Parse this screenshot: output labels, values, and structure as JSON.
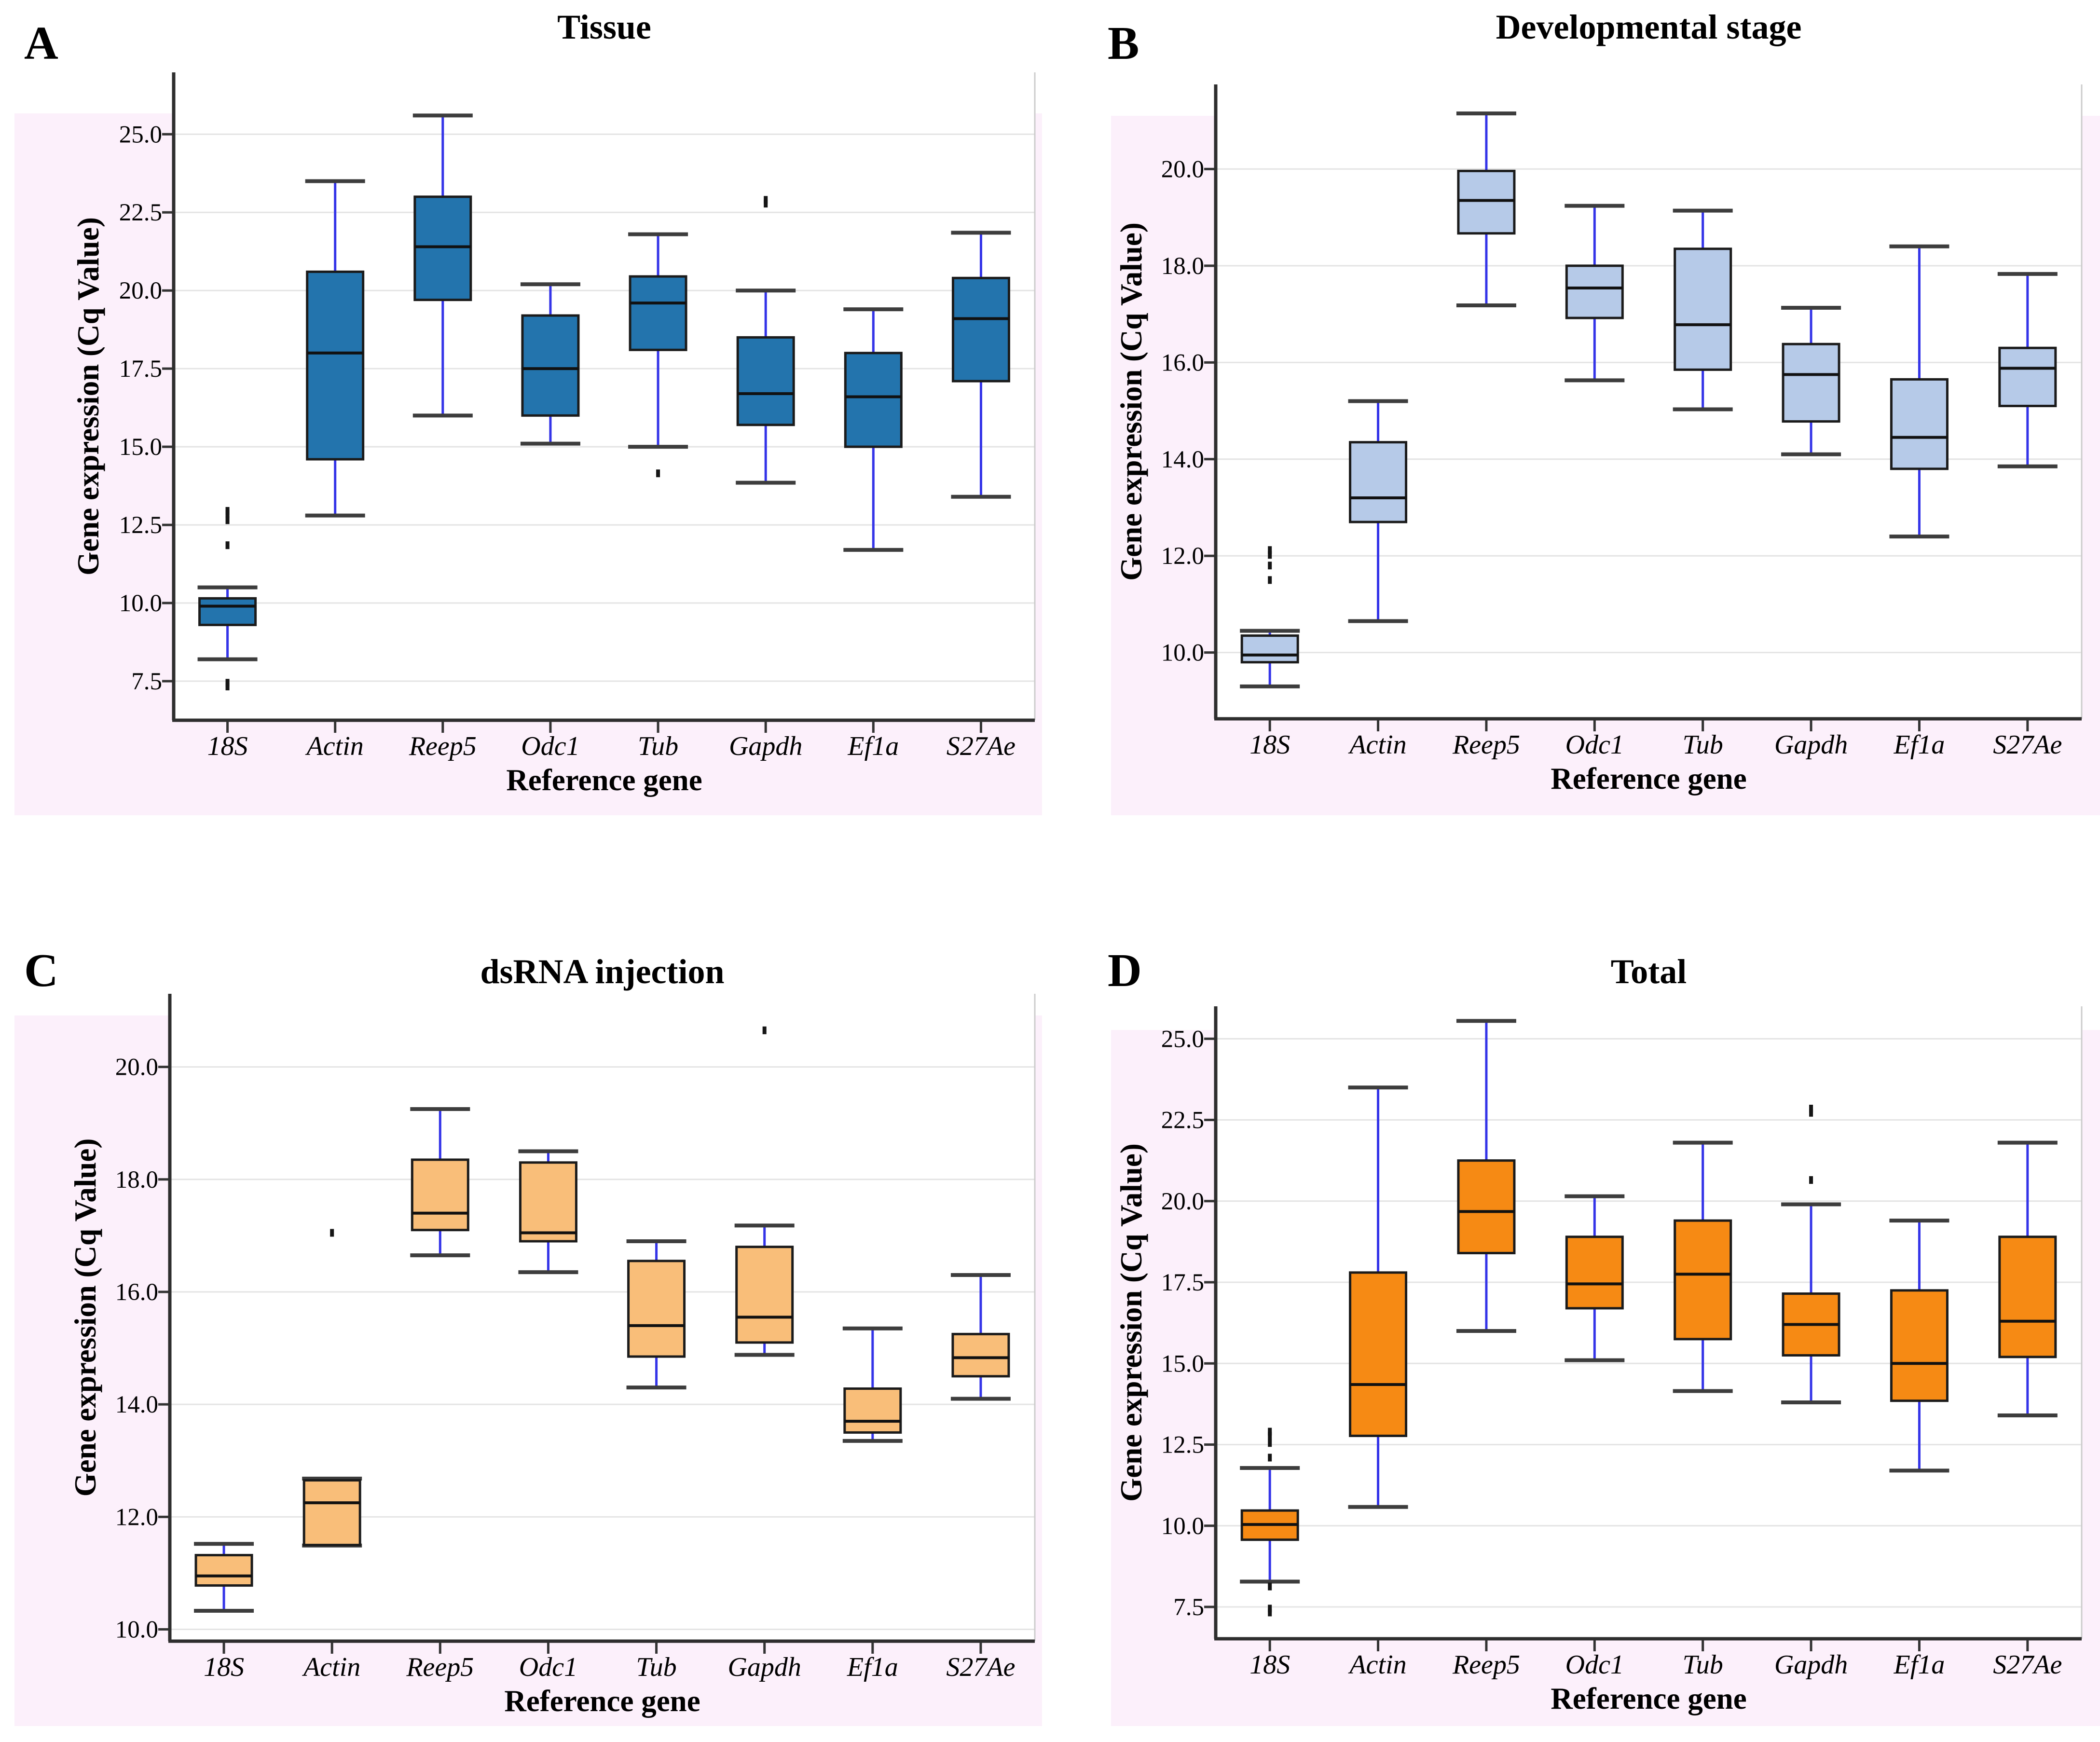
{
  "figure": {
    "background_color": "#ffffff",
    "panel_background_color": "#fcf0fb",
    "plot_background_color": "#ffffff",
    "gridline_color": "#e4e4e4",
    "whisker_color": "#3434e8",
    "cap_color": "#3d3d3d",
    "box_border_color": "#1b1b1b",
    "outlier_color": "#151515"
  },
  "chart_data": [
    {
      "type": "box",
      "panel_letter": "A",
      "title": "Tissue",
      "xlabel": "Reference gene",
      "ylabel": "Gene expression (Cq Value)",
      "box_fill": "#2374ad",
      "ylim": [
        6.25,
        26.98
      ],
      "yticks": [
        7.5,
        10.0,
        12.5,
        15.0,
        17.5,
        20.0,
        22.5,
        25.0
      ],
      "ytick_labels": [
        "7.5",
        "10.0",
        "12.5",
        "15.0",
        "17.5",
        "20.0",
        "22.5",
        "25.0"
      ],
      "categories": [
        "18S",
        "Actin",
        "Reep5",
        "Odc1",
        "Tub",
        "Gapdh",
        "Ef1a",
        "S27Ae"
      ],
      "boxes": [
        {
          "gene": "18S",
          "whisker_low": 8.2,
          "q1": 9.3,
          "median": 9.9,
          "q3": 10.15,
          "whisker_high": 10.5,
          "outliers": [
            12.95,
            12.85,
            12.65,
            11.85,
            7.45,
            7.33
          ]
        },
        {
          "gene": "Actin",
          "whisker_low": 12.8,
          "q1": 14.6,
          "median": 18.0,
          "q3": 20.6,
          "whisker_high": 23.5,
          "outliers": []
        },
        {
          "gene": "Reep5",
          "whisker_low": 16.0,
          "q1": 19.7,
          "median": 21.4,
          "q3": 23.0,
          "whisker_high": 25.6,
          "outliers": []
        },
        {
          "gene": "Odc1",
          "whisker_low": 15.1,
          "q1": 16.0,
          "median": 17.5,
          "q3": 19.2,
          "whisker_high": 20.2,
          "outliers": []
        },
        {
          "gene": "Tub",
          "whisker_low": 15.0,
          "q1": 18.1,
          "median": 19.6,
          "q3": 20.45,
          "whisker_high": 21.8,
          "outliers": [
            14.15
          ]
        },
        {
          "gene": "Gapdh",
          "whisker_low": 13.85,
          "q1": 15.7,
          "median": 16.7,
          "q3": 18.5,
          "whisker_high": 20.0,
          "outliers": [
            22.9,
            22.78
          ]
        },
        {
          "gene": "Ef1a",
          "whisker_low": 11.7,
          "q1": 15.0,
          "median": 16.6,
          "q3": 18.0,
          "whisker_high": 19.4,
          "outliers": []
        },
        {
          "gene": "S27Ae",
          "whisker_low": 13.4,
          "q1": 17.1,
          "median": 19.1,
          "q3": 20.4,
          "whisker_high": 21.85,
          "outliers": []
        }
      ]
    },
    {
      "type": "box",
      "panel_letter": "B",
      "title": "Developmental stage",
      "xlabel": "Reference gene",
      "ylabel": "Gene expression (Cq Value)",
      "box_fill": "#b6cae8",
      "ylim": [
        8.63,
        21.75
      ],
      "yticks": [
        10.0,
        12.0,
        14.0,
        16.0,
        18.0,
        20.0
      ],
      "ytick_labels": [
        "10.0",
        "12.0",
        "14.0",
        "16.0",
        "18.0",
        "20.0"
      ],
      "categories": [
        "18S",
        "Actin",
        "Reep5",
        "Odc1",
        "Tub",
        "Gapdh",
        "Ef1a",
        "S27Ae"
      ],
      "boxes": [
        {
          "gene": "18S",
          "whisker_low": 9.3,
          "q1": 9.8,
          "median": 9.95,
          "q3": 10.35,
          "whisker_high": 10.45,
          "outliers": [
            12.12,
            12.02,
            11.8,
            11.5
          ]
        },
        {
          "gene": "Actin",
          "whisker_low": 10.65,
          "q1": 12.7,
          "median": 13.2,
          "q3": 14.35,
          "whisker_high": 15.2,
          "outliers": []
        },
        {
          "gene": "Reep5",
          "whisker_low": 17.18,
          "q1": 18.67,
          "median": 19.35,
          "q3": 19.96,
          "whisker_high": 21.15,
          "outliers": []
        },
        {
          "gene": "Odc1",
          "whisker_low": 15.63,
          "q1": 16.92,
          "median": 17.54,
          "q3": 18.0,
          "whisker_high": 19.24,
          "outliers": []
        },
        {
          "gene": "Tub",
          "whisker_low": 15.03,
          "q1": 15.85,
          "median": 16.78,
          "q3": 18.35,
          "whisker_high": 19.14,
          "outliers": []
        },
        {
          "gene": "Gapdh",
          "whisker_low": 14.1,
          "q1": 14.78,
          "median": 15.75,
          "q3": 16.38,
          "whisker_high": 17.13,
          "outliers": []
        },
        {
          "gene": "Ef1a",
          "whisker_low": 12.4,
          "q1": 13.8,
          "median": 14.45,
          "q3": 15.65,
          "whisker_high": 18.4,
          "outliers": []
        },
        {
          "gene": "S27Ae",
          "whisker_low": 13.85,
          "q1": 15.1,
          "median": 15.88,
          "q3": 16.3,
          "whisker_high": 17.83,
          "outliers": []
        }
      ]
    },
    {
      "type": "box",
      "panel_letter": "C",
      "title": "dsRNA injection",
      "xlabel": "Reference gene",
      "ylabel": "Gene expression (Cq Value)",
      "box_fill": "#f9be79",
      "ylim": [
        9.79,
        21.3
      ],
      "yticks": [
        10.0,
        12.0,
        14.0,
        16.0,
        18.0,
        20.0
      ],
      "ytick_labels": [
        "10.0",
        "12.0",
        "14.0",
        "16.0",
        "18.0",
        "20.0"
      ],
      "categories": [
        "18S",
        "Actin",
        "Reep5",
        "Odc1",
        "Tub",
        "Gapdh",
        "Ef1a",
        "S27Ae"
      ],
      "boxes": [
        {
          "gene": "18S",
          "whisker_low": 10.33,
          "q1": 10.78,
          "median": 10.95,
          "q3": 11.32,
          "whisker_high": 11.52,
          "outliers": []
        },
        {
          "gene": "Actin",
          "whisker_low": 11.49,
          "q1": 11.5,
          "median": 12.25,
          "q3": 12.65,
          "whisker_high": 12.68,
          "outliers": [
            17.05
          ]
        },
        {
          "gene": "Reep5",
          "whisker_low": 16.65,
          "q1": 17.1,
          "median": 17.4,
          "q3": 18.35,
          "whisker_high": 19.25,
          "outliers": []
        },
        {
          "gene": "Odc1",
          "whisker_low": 16.35,
          "q1": 16.9,
          "median": 17.05,
          "q3": 18.3,
          "whisker_high": 18.5,
          "outliers": []
        },
        {
          "gene": "Tub",
          "whisker_low": 14.3,
          "q1": 14.85,
          "median": 15.4,
          "q3": 16.55,
          "whisker_high": 16.9,
          "outliers": []
        },
        {
          "gene": "Gapdh",
          "whisker_low": 14.88,
          "q1": 15.1,
          "median": 15.55,
          "q3": 16.8,
          "whisker_high": 17.18,
          "outliers": [
            20.65
          ]
        },
        {
          "gene": "Ef1a",
          "whisker_low": 13.35,
          "q1": 13.5,
          "median": 13.7,
          "q3": 14.28,
          "whisker_high": 15.35,
          "outliers": []
        },
        {
          "gene": "S27Ae",
          "whisker_low": 14.1,
          "q1": 14.5,
          "median": 14.83,
          "q3": 15.25,
          "whisker_high": 16.3,
          "outliers": []
        }
      ]
    },
    {
      "type": "box",
      "panel_letter": "D",
      "title": "Total",
      "xlabel": "Reference gene",
      "ylabel": "Gene expression (Cq Value)",
      "box_fill": "#f68a14",
      "ylim": [
        6.52,
        26.0
      ],
      "yticks": [
        7.5,
        10.0,
        12.5,
        15.0,
        17.5,
        20.0,
        22.5,
        25.0
      ],
      "ytick_labels": [
        "7.5",
        "10.0",
        "12.5",
        "15.0",
        "17.5",
        "20.0",
        "22.5",
        "25.0"
      ],
      "categories": [
        "18S",
        "Actin",
        "Reep5",
        "Odc1",
        "Tub",
        "Gapdh",
        "Ef1a",
        "S27Ae"
      ],
      "boxes": [
        {
          "gene": "18S",
          "whisker_low": 8.28,
          "q1": 9.57,
          "median": 10.04,
          "q3": 10.47,
          "whisker_high": 11.78,
          "outliers": [
            12.9,
            12.78,
            12.55,
            12.1,
            8.13,
            7.45,
            7.33
          ]
        },
        {
          "gene": "Actin",
          "whisker_low": 10.58,
          "q1": 12.77,
          "median": 14.35,
          "q3": 17.8,
          "whisker_high": 23.5,
          "outliers": []
        },
        {
          "gene": "Reep5",
          "whisker_low": 16.0,
          "q1": 18.4,
          "median": 19.68,
          "q3": 21.25,
          "whisker_high": 25.55,
          "outliers": []
        },
        {
          "gene": "Odc1",
          "whisker_low": 15.1,
          "q1": 16.7,
          "median": 17.45,
          "q3": 18.9,
          "whisker_high": 20.15,
          "outliers": []
        },
        {
          "gene": "Tub",
          "whisker_low": 14.15,
          "q1": 15.75,
          "median": 17.75,
          "q3": 19.4,
          "whisker_high": 21.8,
          "outliers": []
        },
        {
          "gene": "Gapdh",
          "whisker_low": 13.8,
          "q1": 15.25,
          "median": 16.2,
          "q3": 17.15,
          "whisker_high": 19.9,
          "outliers": [
            22.85,
            22.72,
            20.65
          ]
        },
        {
          "gene": "Ef1a",
          "whisker_low": 11.7,
          "q1": 13.85,
          "median": 15.0,
          "q3": 17.25,
          "whisker_high": 19.4,
          "outliers": []
        },
        {
          "gene": "S27Ae",
          "whisker_low": 13.4,
          "q1": 15.2,
          "median": 16.3,
          "q3": 18.9,
          "whisker_high": 21.8,
          "outliers": []
        }
      ]
    }
  ]
}
